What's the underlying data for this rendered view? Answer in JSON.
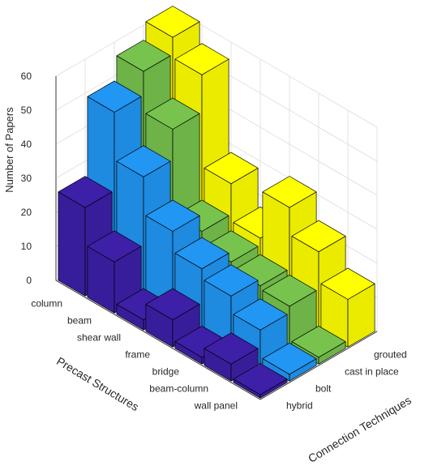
{
  "chart_data": {
    "type": "bar3d",
    "title": "",
    "zlabel": "Number of Papers",
    "xlabel": "Precast Structures",
    "ylabel": "Connection Techniques",
    "zticks": [
      "0",
      "10",
      "20",
      "30",
      "40",
      "50",
      "60"
    ],
    "zlim": [
      0,
      60
    ],
    "grid": true,
    "categories": [
      "column",
      "beam",
      "shear wall",
      "frame",
      "bridge",
      "beam-column",
      "wall panel"
    ],
    "series": [
      {
        "name": "hybrid",
        "color": "#3d1fa8",
        "values": [
          26,
          15,
          3,
          8,
          2,
          5,
          1
        ]
      },
      {
        "name": "bolt",
        "color": "#2196f3",
        "values": [
          49,
          35,
          24,
          18,
          15,
          10,
          2
        ]
      },
      {
        "name": "cast in place",
        "color": "#77c34d",
        "values": [
          56,
          44,
          19,
          15,
          13,
          12,
          2
        ]
      },
      {
        "name": "grouted",
        "color": "#ffff00",
        "values": [
          61,
          55,
          28,
          17,
          31,
          23,
          14
        ]
      }
    ]
  }
}
